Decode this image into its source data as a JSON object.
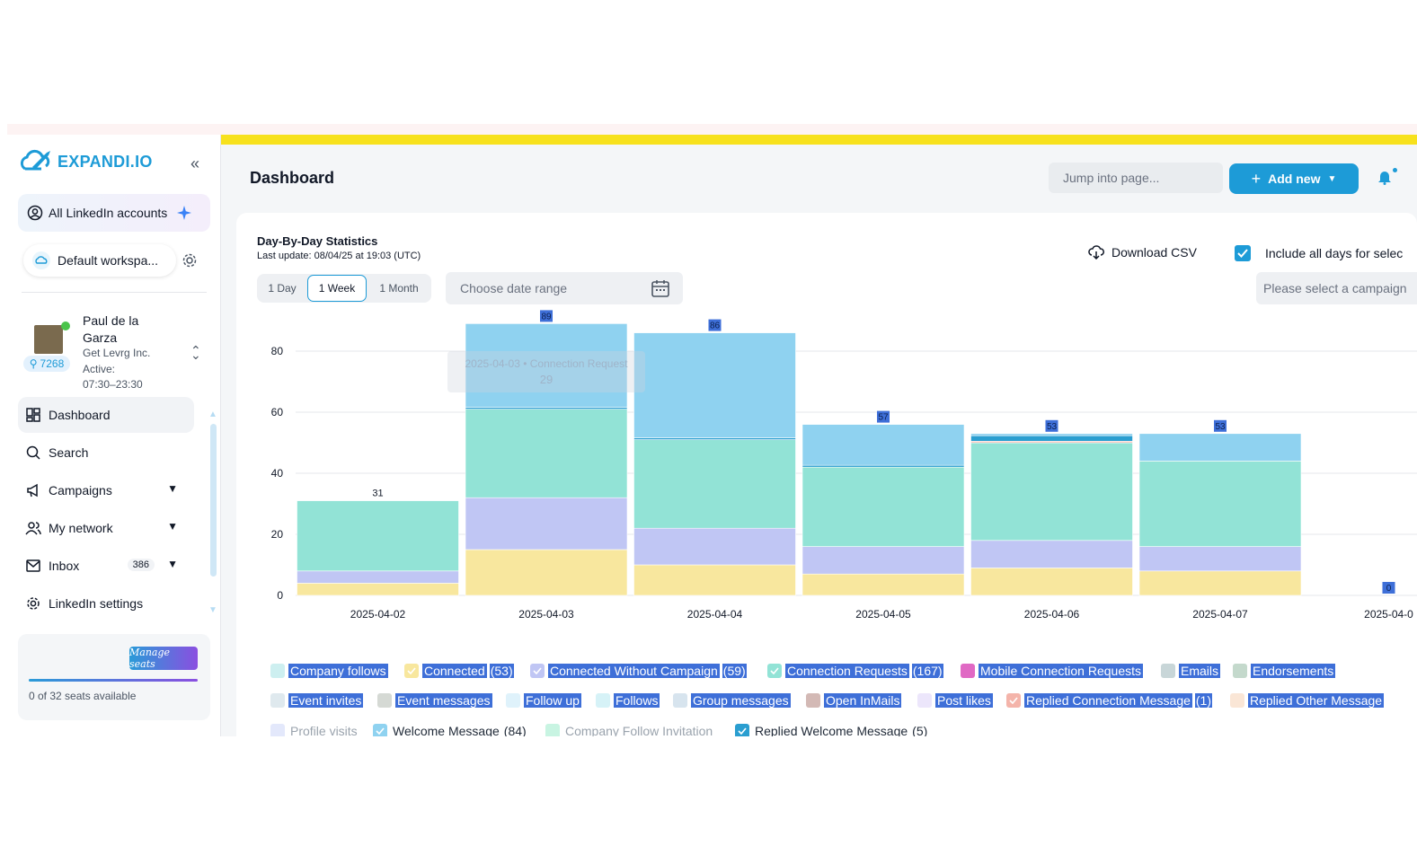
{
  "sidebar": {
    "logo_text": "EXPANDI.IO",
    "accounts_label": "All LinkedIn accounts",
    "workspace_label": "Default workspa...",
    "profile": {
      "name": "Paul de la Garza",
      "company": "Get Levrg Inc.",
      "active": "Active: 07:30–23:30",
      "followers": "7268"
    },
    "nav": [
      {
        "label": "Dashboard",
        "icon": "dashboard-icon",
        "active": true
      },
      {
        "label": "Search",
        "icon": "search-icon"
      },
      {
        "label": "Campaigns",
        "icon": "megaphone-icon",
        "chevron": true
      },
      {
        "label": "My network",
        "icon": "users-icon",
        "chevron": true
      },
      {
        "label": "Inbox",
        "icon": "mail-icon",
        "badge": "386",
        "chevron": true
      },
      {
        "label": "LinkedIn settings",
        "icon": "gear-icon"
      }
    ],
    "seats": {
      "button_label": "Manage seats",
      "text": "0 of 32 seats available",
      "fill_fraction": 1.0
    }
  },
  "header": {
    "title": "Dashboard",
    "jump_placeholder": "Jump into page...",
    "add_new_label": "Add new"
  },
  "card": {
    "title": "Day-By-Day Statistics",
    "subtitle": "Last update: 08/04/25 at 19:03 (UTC)",
    "tabs": [
      "1 Day",
      "1 Week",
      "1 Month"
    ],
    "selected_tab": "1 Week",
    "date_placeholder": "Choose date range",
    "download_label": "Download CSV",
    "include_label": "Include all days for selec",
    "campaign_placeholder": "Please select a campaign",
    "tooltip_title": "2025-04-03 • Connection Request",
    "tooltip_value": "29"
  },
  "chart_data": {
    "type": "bar",
    "stacked": true,
    "categories": [
      "2025-04-02",
      "2025-04-03",
      "2025-04-04",
      "2025-04-05",
      "2025-04-06",
      "2025-04-07",
      "2025-04-0"
    ],
    "totals": [
      "31",
      "89",
      "86",
      "57",
      "53",
      "53",
      "0"
    ],
    "ylim": [
      0,
      90
    ],
    "yticks": [
      "0",
      "20",
      "40",
      "60",
      "80"
    ],
    "grid": true,
    "series": [
      {
        "name": "Connected",
        "color": "#f8e79e",
        "values": [
          4,
          15,
          10,
          7,
          9,
          8,
          0
        ]
      },
      {
        "name": "Connected Without Campaign",
        "color": "#c0c6f4",
        "values": [
          4,
          17,
          12,
          9,
          9,
          8,
          0
        ]
      },
      {
        "name": "Connection Requests",
        "color": "#92e3d6",
        "values": [
          23,
          29,
          29,
          26,
          32,
          28,
          0
        ]
      },
      {
        "name": "Replied Connection Message",
        "color": "#f4b4aa",
        "values": [
          0,
          0,
          0,
          0,
          0.5,
          0,
          0
        ]
      },
      {
        "name": "Replied Welcome Message",
        "color": "#2a9ed0",
        "values": [
          0,
          0.6,
          0.6,
          0.6,
          1.8,
          0,
          0
        ]
      },
      {
        "name": "Welcome Message",
        "color": "#8fd2f0",
        "values": [
          0,
          27.4,
          34.4,
          13.4,
          0.7,
          9,
          0
        ]
      }
    ]
  },
  "legend": [
    {
      "label": "Company follows",
      "count": "",
      "color": "#cdeff0",
      "state": "hl"
    },
    {
      "label": "Connected",
      "count": "(53)",
      "color": "#f8e79e",
      "state": "hl",
      "checked": true
    },
    {
      "label": "Connected Without Campaign",
      "count": "(59)",
      "color": "#c0c6f4",
      "state": "hl",
      "checked": true
    },
    {
      "label": "Connection Requests",
      "count": "(167)",
      "color": "#92e3d6",
      "state": "hl",
      "checked": true
    },
    {
      "label": "Mobile Connection Requests",
      "count": "",
      "color": "#e069c4",
      "state": "hl"
    },
    {
      "label": "Emails",
      "count": "",
      "color": "#c8d6d8",
      "state": "hl"
    },
    {
      "label": "Endorsements",
      "count": "",
      "color": "#c4d9cc",
      "state": "hl"
    },
    {
      "label": "Event invites",
      "count": "",
      "color": "#dfe9ee",
      "state": "hl"
    },
    {
      "label": "Event messages",
      "count": "",
      "color": "#d5d9d4",
      "state": "hl"
    },
    {
      "label": "Follow up",
      "count": "",
      "color": "#dff2fb",
      "state": "hl"
    },
    {
      "label": "Follows",
      "count": "",
      "color": "#d6f2f7",
      "state": "hl"
    },
    {
      "label": "Group messages",
      "count": "",
      "color": "#d7e4ee",
      "state": "hl"
    },
    {
      "label": "Open InMails",
      "count": "",
      "color": "#d3b9b5",
      "state": "hl"
    },
    {
      "label": "Post likes",
      "count": "",
      "color": "#ece6fb",
      "state": "hl"
    },
    {
      "label": "Replied Connection Message",
      "count": "(1)",
      "color": "#f4b4aa",
      "state": "hl",
      "checked": true
    },
    {
      "label": "Replied Other Message",
      "count": "",
      "color": "#fae6d6",
      "state": "hl"
    },
    {
      "label": "Profile visits",
      "count": "",
      "color": "#e3e8fb",
      "state": "dim"
    },
    {
      "label": "Welcome Message",
      "count": "(84)",
      "color": "#8fd2f0",
      "state": "normal",
      "checked": true
    },
    {
      "label": "Company Follow Invitation",
      "count": "",
      "color": "#c8f4e2",
      "state": "dim"
    },
    {
      "label": "Replied Welcome Message",
      "count": "(5)",
      "color": "#2a9ed0",
      "state": "normal",
      "checked": true
    }
  ]
}
